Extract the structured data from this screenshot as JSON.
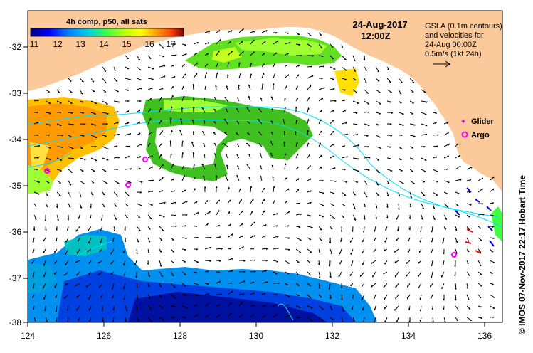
{
  "header": {
    "product_label": "4h comp, p50, all sats",
    "date": "24-Aug-2017",
    "time": "12:00Z"
  },
  "colorbar": {
    "ticks": [
      "11",
      "12",
      "13",
      "14",
      "15",
      "16",
      "17"
    ],
    "colors": [
      "#000080",
      "#0000ff",
      "#0080ff",
      "#00c0ff",
      "#00e0c0",
      "#40ff40",
      "#c0ff00",
      "#ffff00",
      "#ffa000",
      "#ff5000",
      "#c00000",
      "#800000"
    ]
  },
  "info": {
    "line1": "GSLA (0.1m contours)",
    "line2": "and velocities for",
    "line3": "24-Aug 00:00Z",
    "line4": "0.5m/s (1kt 24h)"
  },
  "legend": {
    "glider": "Glider",
    "argo": "Argo",
    "glider_color": "#d000d0",
    "argo_color": "#ff00ff"
  },
  "axes": {
    "x_ticks": [
      "124",
      "126",
      "128",
      "130",
      "132",
      "134",
      "136"
    ],
    "y_ticks": [
      "-32",
      "-33",
      "-34",
      "-35",
      "-36",
      "-37",
      "-38"
    ]
  },
  "credit": "© IMOS 07-Nov-2017 22:17 Hobart Time",
  "colors": {
    "land": "#fcc99a",
    "contour": "#00e0ff"
  }
}
